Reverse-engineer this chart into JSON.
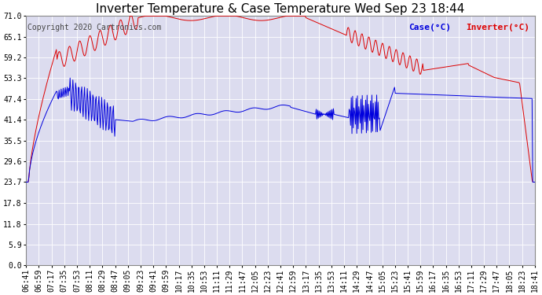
{
  "title": "Inverter Temperature & Case Temperature Wed Sep 23 18:44",
  "copyright": "Copyright 2020 Cartronics.com",
  "legend_case": "Case(°C)",
  "legend_inverter": "Inverter(°C)",
  "case_color": "#0000dd",
  "inverter_color": "#dd0000",
  "background_color": "#ffffff",
  "plot_bg_color": "#dcdcef",
  "grid_color": "#ffffff",
  "ylim": [
    0.0,
    71.0
  ],
  "yticks": [
    0.0,
    5.9,
    11.8,
    17.8,
    23.7,
    29.6,
    35.5,
    41.4,
    47.4,
    53.3,
    59.2,
    65.1,
    71.0
  ],
  "title_fontsize": 11,
  "copyright_fontsize": 7,
  "legend_fontsize": 8,
  "tick_fontsize": 7,
  "n_points": 741
}
